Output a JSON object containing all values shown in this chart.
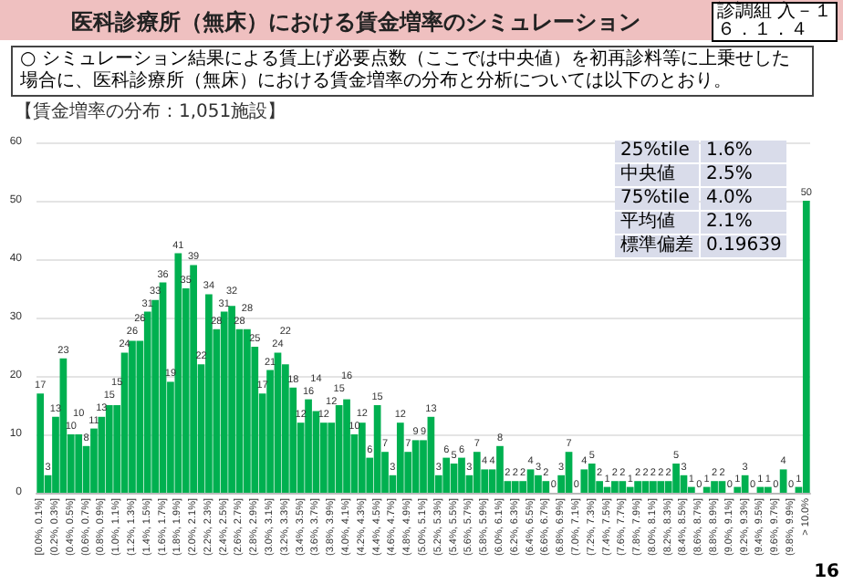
{
  "chart_data": {
    "type": "bar",
    "title": "医科診療所（無床）における賃金増率のシミュレーション",
    "subtitle": "○ シミュレーション結果による賃上げ必要点数（ここでは中央値）を初再診料等に上乗せした場合に、医科診療所（無床）における賃金増率の分布と分析については以下のとおり。",
    "annotations": [
      "【賃金増率の分布：1,051施設】",
      "診調組 入－１",
      "６．１．４",
      "16",
      "25%tile",
      "1.6%",
      "中央値",
      "2.5%",
      "75%tile",
      "4.0%",
      "平均値",
      "2.1%",
      "標準偏差",
      "0.19639"
    ],
    "categories": [
      "[0.0%, 0.1%]",
      null,
      "(0.2%, 0.3%]",
      null,
      "(0.4%, 0.5%]",
      null,
      "(0.6%, 0.7%]",
      null,
      "(0.8%, 0.9%]",
      null,
      "(1.0%, 1.1%]",
      null,
      "(1.2%, 1.3%]",
      null,
      "(1.4%, 1.5%]",
      null,
      "(1.6%, 1.7%]",
      null,
      "(1.8%, 1.9%]",
      null,
      "(2.0%, 2.1%]",
      null,
      "(2.2%, 2.3%]",
      null,
      "(2.4%, 2.5%]",
      null,
      "(2.6%, 2.7%]",
      null,
      "(2.8%, 2.9%]",
      null,
      "(3.0%, 3.1%]",
      null,
      "(3.2%, 3.3%]",
      null,
      "(3.4%, 3.5%]",
      null,
      "(3.6%, 3.7%]",
      null,
      "(3.8%, 3.9%]",
      null,
      "(4.0%, 4.1%]",
      null,
      "(4.2%, 4.3%]",
      null,
      "(4.4%, 4.5%]",
      null,
      "(4.6%, 4.7%]",
      null,
      "(4.8%, 4.9%]",
      null,
      "(5.0%, 5.1%]",
      null,
      "(5.2%, 5.3%]",
      null,
      "(5.4%, 5.5%]",
      null,
      "(5.6%, 5.7%]",
      null,
      "(5.8%, 5.9%]",
      null,
      "(6.0%, 6.1%]",
      null,
      "(6.2%, 6.3%]",
      null,
      "(6.4%, 6.5%]",
      null,
      "(6.6%, 6.7%]",
      null,
      "(6.8%, 6.9%]",
      null,
      "(7.0%, 7.1%]",
      null,
      "(7.2%, 7.3%]",
      null,
      "(7.4%, 7.5%]",
      null,
      "(7.6%, 7.7%]",
      null,
      "(7.8%, 7.9%]",
      null,
      "(8.0%, 8.1%]",
      null,
      "(8.2%, 8.3%]",
      null,
      "(8.4%, 8.5%]",
      null,
      "(8.6%, 8.7%]",
      null,
      "(8.8%, 8.9%]",
      null,
      "(9.0%, 9.1%]",
      null,
      "(9.2%, 9.3%]",
      null,
      "(9.4%, 9.5%]",
      null,
      "(9.6%, 9.7%]",
      null,
      "(9.8%, 9.9%]",
      null,
      "> 10.0%"
    ],
    "values": [
      17,
      3,
      13,
      23,
      10,
      10,
      8,
      11,
      13,
      15,
      15,
      24,
      26,
      26,
      31,
      33,
      36,
      19,
      41,
      35,
      39,
      22,
      34,
      28,
      31,
      32,
      28,
      28,
      25,
      17,
      21,
      24,
      22,
      18,
      12,
      16,
      14,
      12,
      12,
      15,
      16,
      10,
      12,
      6,
      15,
      7,
      3,
      12,
      7,
      9,
      9,
      13,
      3,
      6,
      5,
      6,
      3,
      7,
      4,
      4,
      8,
      2,
      2,
      2,
      4,
      3,
      2,
      0,
      3,
      7,
      0,
      4,
      5,
      2,
      1,
      2,
      2,
      1,
      2,
      2,
      2,
      2,
      2,
      5,
      3,
      1,
      0,
      1,
      2,
      2,
      0,
      1,
      3,
      0,
      1,
      1,
      0,
      4,
      0,
      1,
      50
    ],
    "color": "#00b050",
    "ylim": [
      0,
      60
    ],
    "yticks": [
      0,
      10,
      20,
      30,
      40,
      50,
      60
    ],
    "grid": "y",
    "data_labels": true
  }
}
